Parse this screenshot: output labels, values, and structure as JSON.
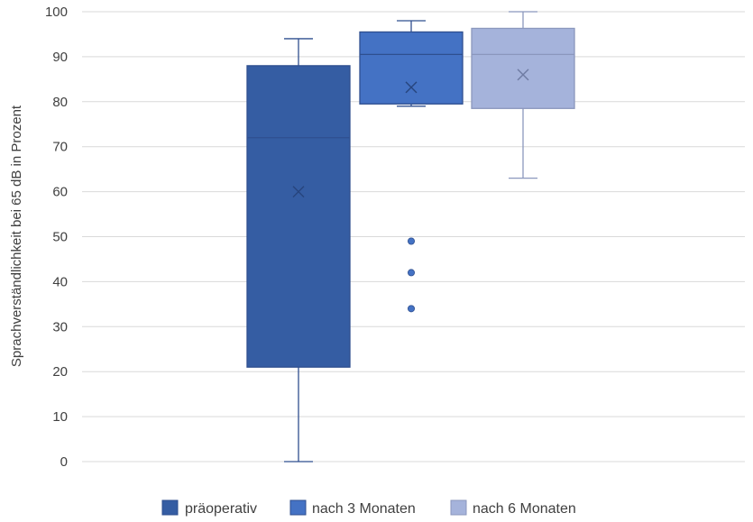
{
  "chart_data": {
    "type": "box",
    "title": "",
    "xlabel": "",
    "ylabel": "Sprachverständlichkeit bei 65 dB  in Prozent",
    "ylim": [
      0,
      100
    ],
    "yticks": [
      0,
      10,
      20,
      30,
      40,
      50,
      60,
      70,
      80,
      90,
      100
    ],
    "grid": true,
    "legend_position": "bottom",
    "series": [
      {
        "name": "präoperativ",
        "color": "#355DA3",
        "min": 0,
        "q1": 21,
        "median": 72,
        "q3": 88,
        "max": 94,
        "mean": 60,
        "outliers": []
      },
      {
        "name": "nach 3 Monaten",
        "color": "#4472C4",
        "min": 79,
        "q1": 79.5,
        "median": 90.5,
        "q3": 95.5,
        "max": 98,
        "mean": 83.2,
        "outliers": [
          49,
          42,
          34
        ]
      },
      {
        "name": "nach 6 Monaten",
        "color": "#A5B3DB",
        "min": 63,
        "q1": 78.5,
        "median": 90.5,
        "q3": 96.3,
        "max": 100,
        "mean": 86,
        "outliers": []
      }
    ]
  }
}
